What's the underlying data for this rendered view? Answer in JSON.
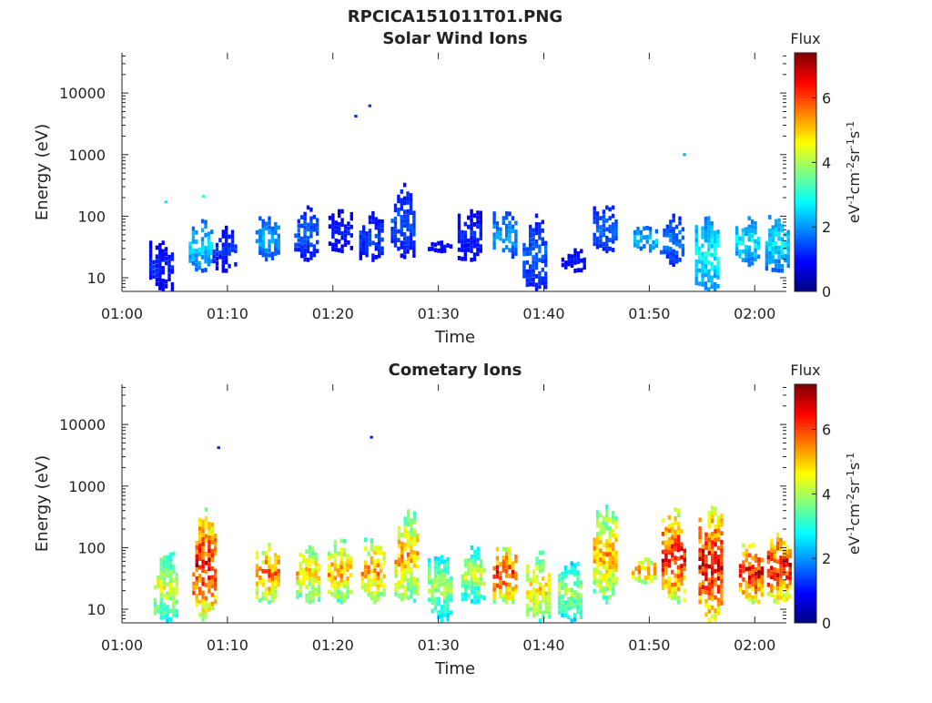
{
  "figure_title": "RPCICA151011T01.PNG",
  "colorbar": {
    "title": "Flux",
    "unit_label": "eV-1cm-2sr-1s-1",
    "range": [
      0,
      7.4
    ],
    "ticks": [
      "0",
      "2",
      "4",
      "6"
    ],
    "tick_values": [
      0,
      2,
      4,
      6
    ]
  },
  "chart_data": [
    {
      "type": "heatmap",
      "title": "Solar Wind Ions",
      "xlabel": "Time",
      "ylabel": "Energy (eV)",
      "y_scale": "log",
      "ylim": [
        6,
        45000
      ],
      "xlim": [
        "01:00",
        "02:03"
      ],
      "x_ticks": [
        "01:00",
        "01:10",
        "01:20",
        "01:30",
        "01:40",
        "01:50",
        "02:00"
      ],
      "y_ticks": [
        "10",
        "100",
        "1000",
        "10000"
      ],
      "bursts": [
        {
          "t": "01:03:45",
          "e_min": 6,
          "e_max": 40,
          "flux": 1.2
        },
        {
          "t": "01:04:10",
          "e_min": 170,
          "e_max": 170,
          "flux": 2.6
        },
        {
          "t": "01:07:30",
          "e_min": 12,
          "e_max": 90,
          "flux": 2.5
        },
        {
          "t": "01:07:45",
          "e_min": 210,
          "e_max": 210,
          "flux": 3.0
        },
        {
          "t": "01:09:45",
          "e_min": 12,
          "e_max": 70,
          "flux": 1.3
        },
        {
          "t": "01:13:50",
          "e_min": 18,
          "e_max": 100,
          "flux": 2.2
        },
        {
          "t": "01:17:30",
          "e_min": 18,
          "e_max": 150,
          "flux": 1.6
        },
        {
          "t": "01:20:45",
          "e_min": 25,
          "e_max": 130,
          "flux": 1.1
        },
        {
          "t": "01:22:10",
          "e_min": 4200,
          "e_max": 4200,
          "flux": 1.2
        },
        {
          "t": "01:23:30",
          "e_min": 6200,
          "e_max": 6200,
          "flux": 1.3
        },
        {
          "t": "01:23:40",
          "e_min": 18,
          "e_max": 120,
          "flux": 1.4
        },
        {
          "t": "01:26:40",
          "e_min": 20,
          "e_max": 350,
          "flux": 1.5
        },
        {
          "t": "01:30:10",
          "e_min": 25,
          "e_max": 40,
          "flux": 1.0
        },
        {
          "t": "01:33:00",
          "e_min": 18,
          "e_max": 130,
          "flux": 1.2
        },
        {
          "t": "01:36:20",
          "e_min": 18,
          "e_max": 120,
          "flux": 2.1
        },
        {
          "t": "01:39:10",
          "e_min": 6,
          "e_max": 110,
          "flux": 1.6
        },
        {
          "t": "01:42:50",
          "e_min": 12,
          "e_max": 30,
          "flux": 1.1
        },
        {
          "t": "01:45:50",
          "e_min": 25,
          "e_max": 150,
          "flux": 1.7
        },
        {
          "t": "01:49:40",
          "e_min": 25,
          "e_max": 70,
          "flux": 2.4
        },
        {
          "t": "01:52:10",
          "e_min": 15,
          "e_max": 110,
          "flux": 1.8
        },
        {
          "t": "01:53:20",
          "e_min": 1000,
          "e_max": 1000,
          "flux": 2.2
        },
        {
          "t": "01:55:30",
          "e_min": 6,
          "e_max": 100,
          "flux": 2.9
        },
        {
          "t": "01:59:20",
          "e_min": 15,
          "e_max": 100,
          "flux": 2.7
        },
        {
          "t": "02:02:10",
          "e_min": 12,
          "e_max": 110,
          "flux": 2.7
        }
      ]
    },
    {
      "type": "heatmap",
      "title": "Cometary Ions",
      "xlabel": "Time",
      "ylabel": "Energy (eV)",
      "y_scale": "log",
      "ylim": [
        6,
        45000
      ],
      "xlim": [
        "01:00",
        "02:03"
      ],
      "x_ticks": [
        "01:00",
        "01:10",
        "01:20",
        "01:30",
        "01:40",
        "01:50",
        "02:00"
      ],
      "y_ticks": [
        "10",
        "100",
        "1000",
        "10000"
      ],
      "bursts": [
        {
          "t": "01:04:10",
          "e_min": 6,
          "e_max": 90,
          "flux": 4.5
        },
        {
          "t": "01:07:50",
          "e_min": 6,
          "e_max": 450,
          "flux": 6.5
        },
        {
          "t": "01:09:10",
          "e_min": 4200,
          "e_max": 4200,
          "flux": 1.2
        },
        {
          "t": "01:13:50",
          "e_min": 12,
          "e_max": 120,
          "flux": 5.8
        },
        {
          "t": "01:17:40",
          "e_min": 12,
          "e_max": 130,
          "flux": 5.0
        },
        {
          "t": "01:20:40",
          "e_min": 12,
          "e_max": 140,
          "flux": 5.3
        },
        {
          "t": "01:23:40",
          "e_min": 6200,
          "e_max": 6200,
          "flux": 1.2
        },
        {
          "t": "01:23:50",
          "e_min": 12,
          "e_max": 150,
          "flux": 5.5
        },
        {
          "t": "01:27:00",
          "e_min": 12,
          "e_max": 420,
          "flux": 5.3
        },
        {
          "t": "01:30:10",
          "e_min": 6,
          "e_max": 90,
          "flux": 4.0
        },
        {
          "t": "01:33:20",
          "e_min": 12,
          "e_max": 110,
          "flux": 4.2
        },
        {
          "t": "01:36:20",
          "e_min": 12,
          "e_max": 120,
          "flux": 6.2
        },
        {
          "t": "01:39:30",
          "e_min": 6,
          "e_max": 90,
          "flux": 5.0
        },
        {
          "t": "01:42:30",
          "e_min": 6,
          "e_max": 60,
          "flux": 4.0
        },
        {
          "t": "01:45:50",
          "e_min": 12,
          "e_max": 500,
          "flux": 5.2
        },
        {
          "t": "01:49:30",
          "e_min": 25,
          "e_max": 70,
          "flux": 5.6
        },
        {
          "t": "01:52:20",
          "e_min": 12,
          "e_max": 450,
          "flux": 6.5
        },
        {
          "t": "01:55:50",
          "e_min": 6,
          "e_max": 480,
          "flux": 6.8
        },
        {
          "t": "01:59:40",
          "e_min": 12,
          "e_max": 120,
          "flux": 6.6
        },
        {
          "t": "02:02:20",
          "e_min": 12,
          "e_max": 200,
          "flux": 6.7
        }
      ]
    }
  ]
}
